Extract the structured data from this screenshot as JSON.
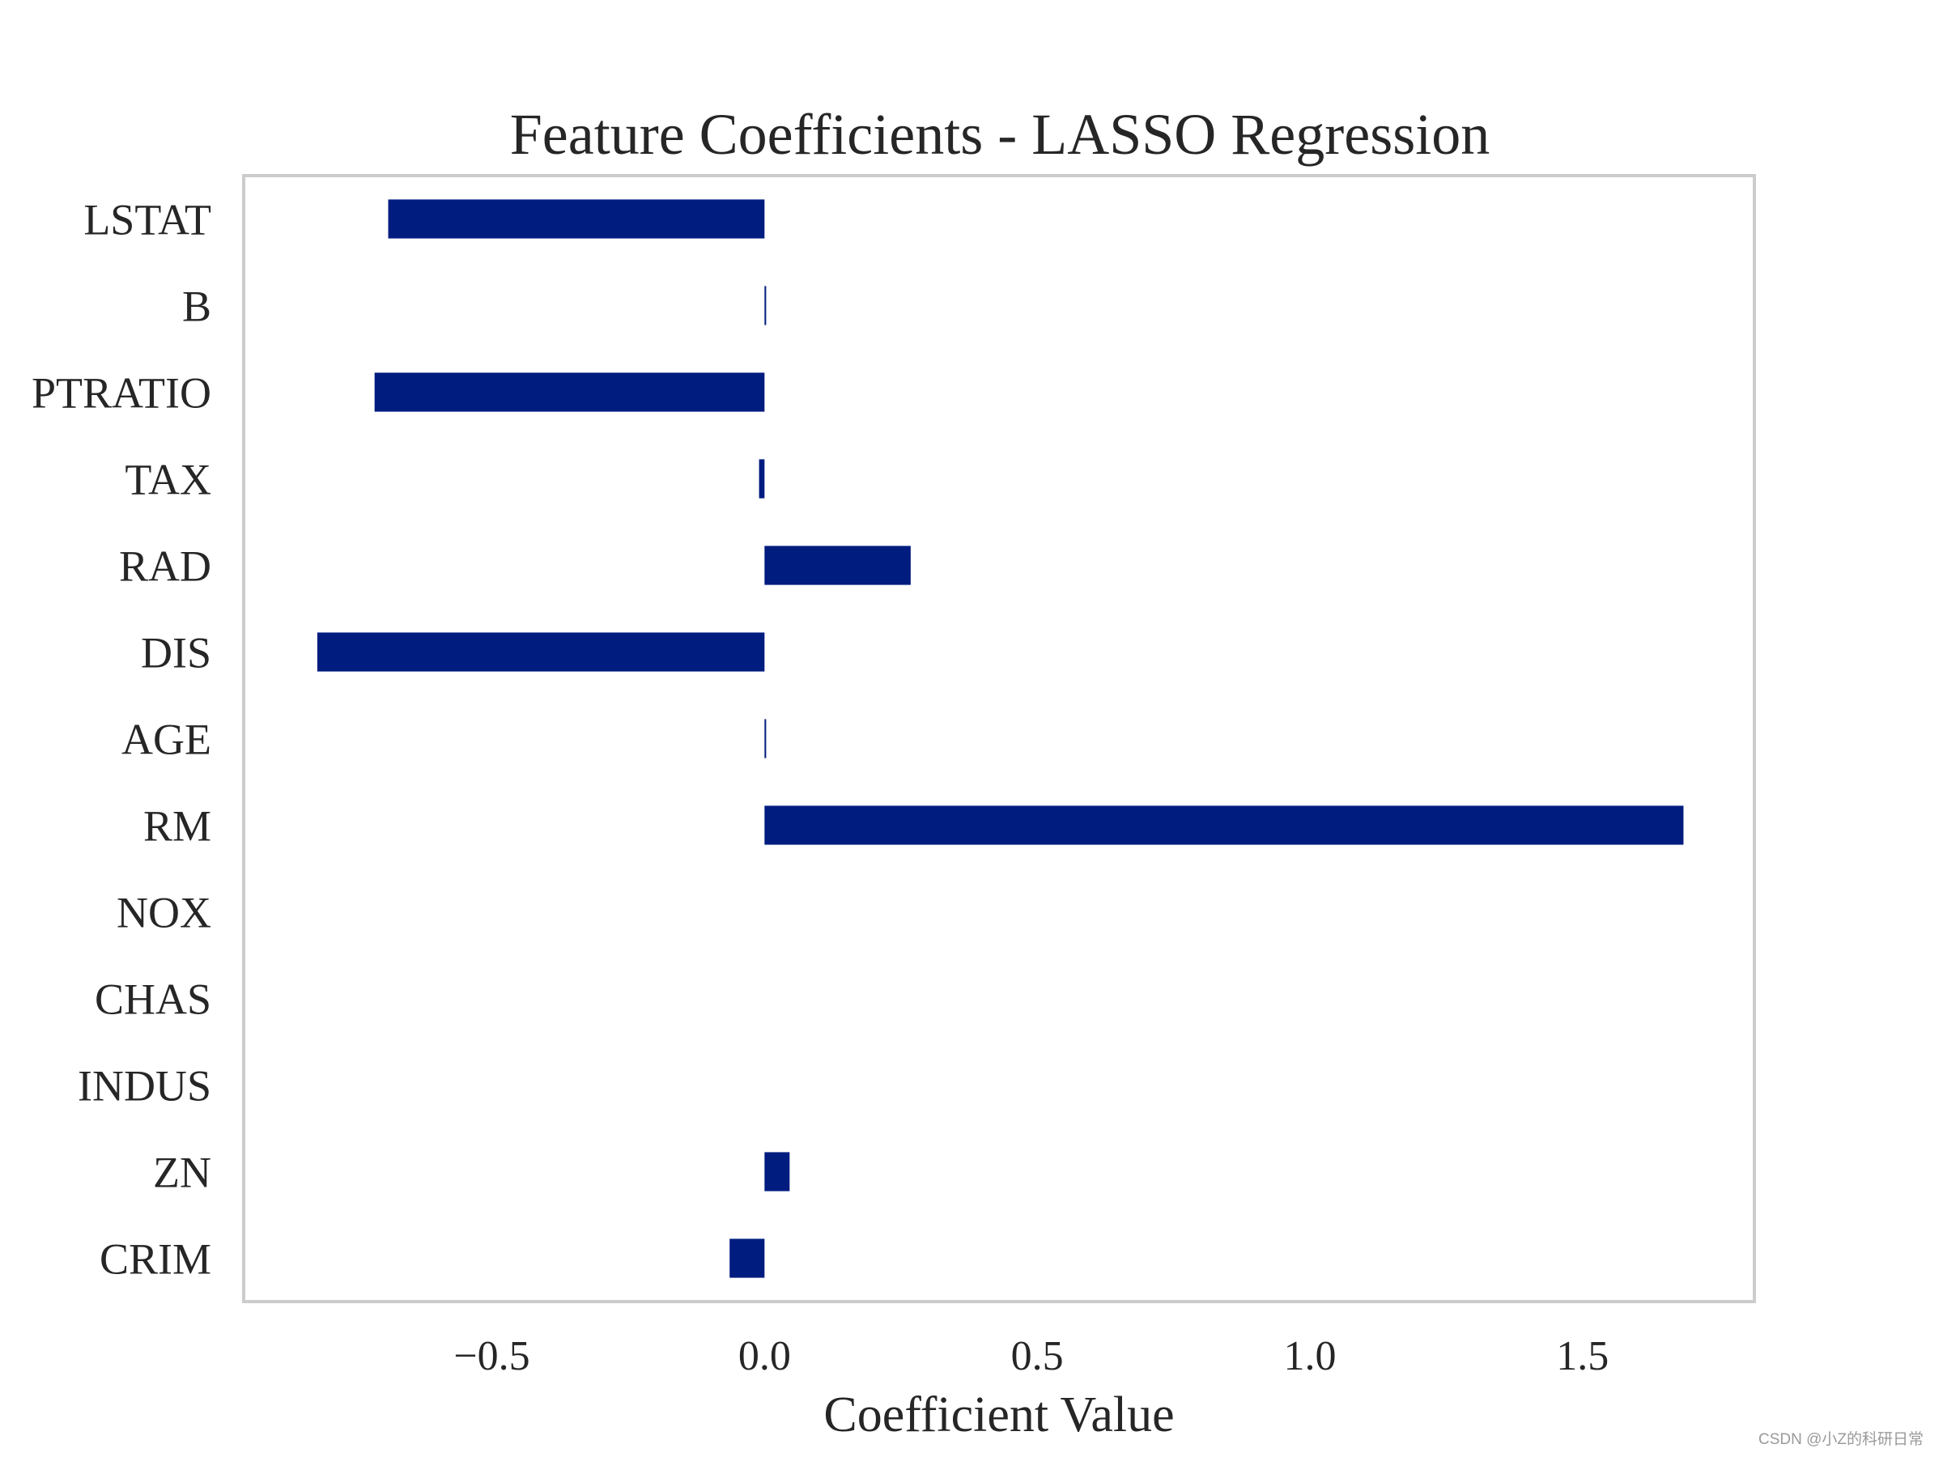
{
  "chart_data": {
    "type": "bar",
    "orientation": "horizontal",
    "title": "Feature Coefficients - LASSO Regression",
    "xlabel": "Coefficient Value",
    "ylabel": "",
    "categories": [
      "CRIM",
      "ZN",
      "INDUS",
      "CHAS",
      "NOX",
      "RM",
      "AGE",
      "DIS",
      "RAD",
      "TAX",
      "PTRATIO",
      "B",
      "LSTAT"
    ],
    "values": [
      -0.064,
      0.046,
      0.0,
      0.0,
      0.0,
      1.685,
      0.003,
      -0.82,
      0.268,
      -0.01,
      -0.715,
      0.003,
      -0.69
    ],
    "xlim": [
      -0.955,
      1.815
    ],
    "xticks": [
      -0.5,
      0.0,
      0.5,
      1.0,
      1.5
    ],
    "xtick_labels": [
      "−0.5",
      "0.0",
      "0.5",
      "1.0",
      "1.5"
    ],
    "grid": false,
    "bar_color": "#001c7f",
    "frame_color": "#cccccc",
    "text_color": "#262626"
  },
  "watermark": "CSDN @小Z的科研日常"
}
